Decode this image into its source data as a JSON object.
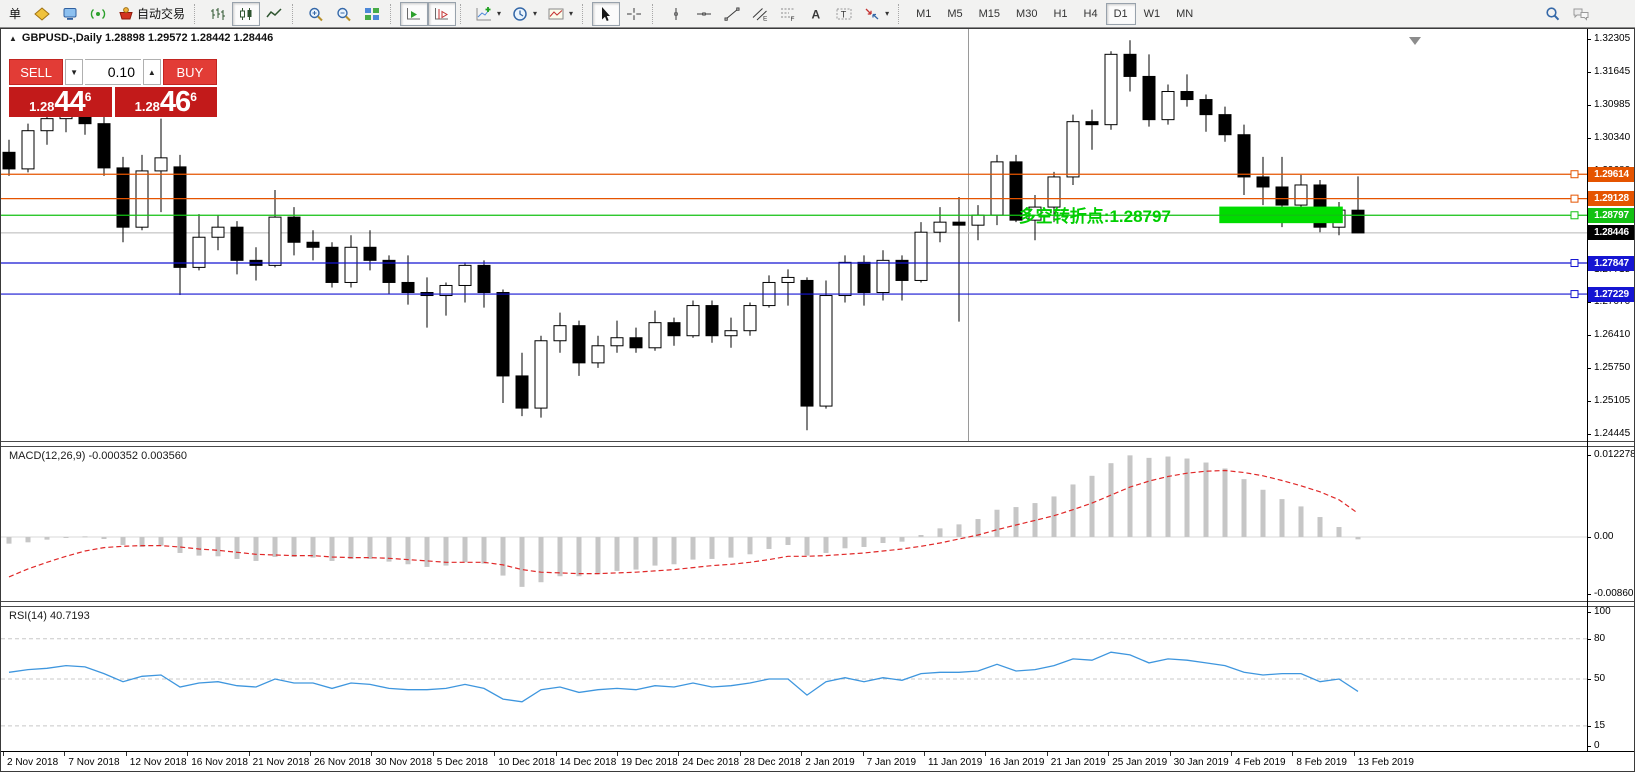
{
  "toolbar": {
    "groups": [
      {
        "items": [
          {
            "name": "new-order-button",
            "label": "单"
          },
          {
            "name": "gold-icon"
          },
          {
            "name": "terminal-icon"
          },
          {
            "name": "signal-icon"
          },
          {
            "name": "autotrading-button",
            "label": "自动交易"
          }
        ]
      },
      {
        "items": [
          {
            "name": "bar-chart-button"
          },
          {
            "name": "candlestick-chart-button",
            "active": true
          },
          {
            "name": "line-chart-button"
          }
        ]
      },
      {
        "items": [
          {
            "name": "zoom-in-button"
          },
          {
            "name": "zoom-out-button"
          },
          {
            "name": "tile-windows-button"
          }
        ]
      },
      {
        "items": [
          {
            "name": "auto-scroll-button",
            "active": true
          },
          {
            "name": "chart-shift-button",
            "active": true
          }
        ]
      },
      {
        "items": [
          {
            "name": "indicators-button",
            "dropdown": true
          },
          {
            "name": "periods-button",
            "dropdown": true
          },
          {
            "name": "templates-button",
            "dropdown": true
          }
        ]
      },
      {
        "items": [
          {
            "name": "cursor-button",
            "active": true
          },
          {
            "name": "crosshair-button"
          }
        ]
      },
      {
        "items": [
          {
            "name": "vertical-line-button"
          },
          {
            "name": "horizontal-line-button"
          },
          {
            "name": "trendline-button"
          },
          {
            "name": "equidistant-channel-button"
          },
          {
            "name": "fibonacci-button"
          },
          {
            "name": "text-button"
          },
          {
            "name": "text-label-button"
          },
          {
            "name": "arrows-button",
            "dropdown": true
          }
        ]
      }
    ],
    "timeframes": {
      "items": [
        "M1",
        "M5",
        "M15",
        "M30",
        "H1",
        "H4",
        "D1",
        "W1",
        "MN"
      ],
      "active": "D1"
    },
    "right_items": [
      {
        "name": "search-button"
      },
      {
        "name": "chat-button"
      }
    ]
  },
  "window_title": {
    "collapse_icon": "▲",
    "text": "GBPUSD-,Daily  1.28898 1.29572 1.28442 1.28446"
  },
  "trade_panel": {
    "sell_label": "SELL",
    "buy_label": "BUY",
    "volume": "0.10",
    "sell_price": {
      "prefix": "1.28",
      "big": "44",
      "sup": "6"
    },
    "buy_price": {
      "prefix": "1.28",
      "big": "46",
      "sup": "6"
    }
  },
  "indicators": {
    "macd_label": "MACD(12,26,9) -0.000352 0.003560",
    "rsi_label": "RSI(14) 40.7193"
  },
  "main_chart": {
    "price_ticks": [
      "1.32305",
      "1.31645",
      "1.30985",
      "1.30340",
      "1.29680",
      "1.29020",
      "1.28375",
      "1.27715",
      "1.27070",
      "1.26410",
      "1.25750",
      "1.25105",
      "1.24445"
    ],
    "levels": [
      {
        "price": 1.29614,
        "label": "1.29614",
        "color": "#E55400"
      },
      {
        "price": 1.29128,
        "label": "1.29128",
        "color": "#E55400"
      },
      {
        "price": 1.28797,
        "label": "1.28797",
        "color": "#12C112"
      },
      {
        "price": 1.27847,
        "label": "1.27847",
        "color": "#1515D2"
      },
      {
        "price": 1.27229,
        "label": "1.27229",
        "color": "#1515D2"
      }
    ],
    "current_price": {
      "price": 1.28446,
      "label": "1.28446",
      "badge_color": "#000000",
      "line_color": "#b6b6b6"
    },
    "rectangle": {
      "bar_start": 63.7,
      "bar_end": 70.2,
      "price_top": 1.2897,
      "price_bottom": 1.2864,
      "color": "#00DC00"
    },
    "annotation": {
      "text": "多空转折点:1.28797",
      "color": "#00CE00",
      "bar": 53.2,
      "price": 1.2878
    },
    "vertical_line": {
      "bar": 50.5,
      "color": "#9a9a9a"
    }
  },
  "macd_axis_ticks": [
    "0.012278",
    "0.00",
    "-0.008605"
  ],
  "rsi_axis_ticks": [
    "100",
    "80",
    "50",
    "15",
    "0"
  ],
  "rsi_levels": [
    80,
    50,
    15
  ],
  "x_axis_labels": [
    "2 Nov 2018",
    "7 Nov 2018",
    "12 Nov 2018",
    "16 Nov 2018",
    "21 Nov 2018",
    "26 Nov 2018",
    "30 Nov 2018",
    "5 Dec 2018",
    "10 Dec 2018",
    "14 Dec 2018",
    "19 Dec 2018",
    "24 Dec 2018",
    "28 Dec 2018",
    "2 Jan 2019",
    "7 Jan 2019",
    "11 Jan 2019",
    "16 Jan 2019",
    "21 Jan 2019",
    "25 Jan 2019",
    "30 Jan 2019",
    "4 Feb 2019",
    "8 Feb 2019",
    "13 Feb 2019"
  ],
  "colors": {
    "level_orange": "#E55400",
    "level_green": "#12C112",
    "level_blue": "#1515D2",
    "panel_red": "#c21a1a",
    "button_red": "#e23c36",
    "macd_bar": "#c6c6c6",
    "macd_signal": "#e02828",
    "rsi_line": "#3e96de"
  },
  "chart_data": [
    {
      "type": "candlestick",
      "symbol": "GBPUSD-",
      "timeframe": "Daily",
      "open": "1.28898",
      "high": "1.29572",
      "low": "1.28442",
      "close": "1.28446",
      "ylim": [
        1.24445,
        1.32305
      ],
      "dates": [
        "2018-11-02",
        "2018-11-05",
        "2018-11-06",
        "2018-11-07",
        "2018-11-08",
        "2018-11-09",
        "2018-11-12",
        "2018-11-13",
        "2018-11-14",
        "2018-11-15",
        "2018-11-16",
        "2018-11-19",
        "2018-11-20",
        "2018-11-21",
        "2018-11-22",
        "2018-11-23",
        "2018-11-26",
        "2018-11-27",
        "2018-11-28",
        "2018-11-29",
        "2018-11-30",
        "2018-12-03",
        "2018-12-04",
        "2018-12-05",
        "2018-12-06",
        "2018-12-07",
        "2018-12-10",
        "2018-12-11",
        "2018-12-12",
        "2018-12-13",
        "2018-12-14",
        "2018-12-17",
        "2018-12-18",
        "2018-12-19",
        "2018-12-20",
        "2018-12-21",
        "2018-12-24",
        "2018-12-26",
        "2018-12-27",
        "2018-12-28",
        "2018-12-31",
        "2019-01-02",
        "2019-01-03",
        "2019-01-04",
        "2019-01-07",
        "2019-01-08",
        "2019-01-09",
        "2019-01-10",
        "2019-01-11",
        "2019-01-14",
        "2019-01-15",
        "2019-01-16",
        "2019-01-17",
        "2019-01-18",
        "2019-01-21",
        "2019-01-22",
        "2019-01-23",
        "2019-01-24",
        "2019-01-25",
        "2019-01-28",
        "2019-01-29",
        "2019-01-30",
        "2019-01-31",
        "2019-02-01",
        "2019-02-04",
        "2019-02-05",
        "2019-02-06",
        "2019-02-07",
        "2019-02-08",
        "2019-02-11",
        "2019-02-12",
        "2019-02-13"
      ],
      "ohlc": [
        [
          1.3005,
          1.303,
          1.2958,
          1.2972
        ],
        [
          1.2972,
          1.3062,
          1.2965,
          1.3048
        ],
        [
          1.3048,
          1.3092,
          1.302,
          1.3072
        ],
        [
          1.3072,
          1.31,
          1.3045,
          1.3088
        ],
        [
          1.3088,
          1.3099,
          1.304,
          1.3062
        ],
        [
          1.3062,
          1.3076,
          1.2958,
          1.2974
        ],
        [
          1.2974,
          1.2996,
          1.2826,
          1.2856
        ],
        [
          1.2856,
          1.3,
          1.285,
          1.2968
        ],
        [
          1.2968,
          1.3072,
          1.2886,
          1.2994
        ],
        [
          1.2976,
          1.3,
          1.2721,
          1.2776
        ],
        [
          1.2776,
          1.2882,
          1.277,
          1.2836
        ],
        [
          1.2836,
          1.288,
          1.281,
          1.2856
        ],
        [
          1.2856,
          1.2868,
          1.2762,
          1.279
        ],
        [
          1.279,
          1.2816,
          1.275,
          1.278
        ],
        [
          1.278,
          1.293,
          1.2776,
          1.2876
        ],
        [
          1.2876,
          1.2896,
          1.28,
          1.2826
        ],
        [
          1.2826,
          1.285,
          1.279,
          1.2816
        ],
        [
          1.2816,
          1.2826,
          1.2736,
          1.2746
        ],
        [
          1.2746,
          1.284,
          1.2736,
          1.2816
        ],
        [
          1.2816,
          1.285,
          1.277,
          1.279
        ],
        [
          1.279,
          1.28,
          1.2722,
          1.2746
        ],
        [
          1.2746,
          1.28,
          1.2702,
          1.2726
        ],
        [
          1.2726,
          1.2756,
          1.2656,
          1.272
        ],
        [
          1.272,
          1.2746,
          1.268,
          1.274
        ],
        [
          1.274,
          1.2786,
          1.2706,
          1.278
        ],
        [
          1.278,
          1.279,
          1.2696,
          1.2726
        ],
        [
          1.2726,
          1.2732,
          1.2506,
          1.256
        ],
        [
          1.256,
          1.2606,
          1.248,
          1.2496
        ],
        [
          1.2496,
          1.264,
          1.2477,
          1.263
        ],
        [
          1.263,
          1.2686,
          1.2606,
          1.266
        ],
        [
          1.266,
          1.267,
          1.256,
          1.2586
        ],
        [
          1.2586,
          1.264,
          1.2576,
          1.262
        ],
        [
          1.262,
          1.267,
          1.2606,
          1.2636
        ],
        [
          1.2636,
          1.2656,
          1.2606,
          1.2616
        ],
        [
          1.2616,
          1.269,
          1.261,
          1.2666
        ],
        [
          1.2666,
          1.2676,
          1.262,
          1.264
        ],
        [
          1.264,
          1.271,
          1.2636,
          1.27
        ],
        [
          1.27,
          1.271,
          1.2626,
          1.264
        ],
        [
          1.264,
          1.2676,
          1.2616,
          1.265
        ],
        [
          1.265,
          1.2706,
          1.264,
          1.27
        ],
        [
          1.27,
          1.276,
          1.2696,
          1.2746
        ],
        [
          1.2746,
          1.2772,
          1.27,
          1.2756
        ],
        [
          1.275,
          1.2756,
          1.2452,
          1.25
        ],
        [
          1.25,
          1.275,
          1.2495,
          1.272
        ],
        [
          1.272,
          1.28,
          1.2706,
          1.2786
        ],
        [
          1.2786,
          1.28,
          1.27,
          1.2726
        ],
        [
          1.2726,
          1.281,
          1.271,
          1.279
        ],
        [
          1.279,
          1.28,
          1.271,
          1.275
        ],
        [
          1.275,
          1.2866,
          1.2746,
          1.2846
        ],
        [
          1.2846,
          1.2896,
          1.2826,
          1.2866
        ],
        [
          1.2866,
          1.2916,
          1.2668,
          1.286
        ],
        [
          1.286,
          1.29,
          1.283,
          1.288
        ],
        [
          1.288,
          1.3,
          1.286,
          1.2986
        ],
        [
          1.2986,
          1.3,
          1.2866,
          1.287
        ],
        [
          1.287,
          1.292,
          1.283,
          1.2896
        ],
        [
          1.2896,
          1.2966,
          1.2866,
          1.2956
        ],
        [
          1.2956,
          1.308,
          1.294,
          1.3066
        ],
        [
          1.3066,
          1.309,
          1.301,
          1.306
        ],
        [
          1.306,
          1.3206,
          1.305,
          1.32
        ],
        [
          1.32,
          1.3228,
          1.3126,
          1.3156
        ],
        [
          1.3156,
          1.32,
          1.3056,
          1.307
        ],
        [
          1.307,
          1.314,
          1.306,
          1.3126
        ],
        [
          1.3126,
          1.316,
          1.3096,
          1.311
        ],
        [
          1.311,
          1.312,
          1.3046,
          1.308
        ],
        [
          1.308,
          1.3096,
          1.3026,
          1.304
        ],
        [
          1.304,
          1.306,
          1.292,
          1.2956
        ],
        [
          1.2956,
          1.2996,
          1.29,
          1.2936
        ],
        [
          1.2936,
          1.2996,
          1.2856,
          1.29
        ],
        [
          1.29,
          1.296,
          1.288,
          1.294
        ],
        [
          1.294,
          1.295,
          1.2846,
          1.2856
        ],
        [
          1.2856,
          1.2906,
          1.284,
          1.289
        ],
        [
          1.28898,
          1.29572,
          1.28442,
          1.28446
        ]
      ]
    },
    {
      "type": "bar",
      "name": "MACD(12,26,9)",
      "current_main": "-0.000352",
      "current_signal": "0.003560",
      "ylim": [
        -0.008605,
        0.012278
      ],
      "values": [
        -0.001,
        -0.0008,
        -0.0004,
        -0.0001,
        0.0001,
        -0.0003,
        -0.0012,
        -0.0015,
        -0.0013,
        -0.0024,
        -0.0028,
        -0.0029,
        -0.0033,
        -0.0036,
        -0.003,
        -0.003,
        -0.0031,
        -0.0036,
        -0.0033,
        -0.0033,
        -0.0037,
        -0.0041,
        -0.0045,
        -0.0043,
        -0.0038,
        -0.004,
        -0.0058,
        -0.0075,
        -0.0068,
        -0.0059,
        -0.0059,
        -0.0056,
        -0.0051,
        -0.0049,
        -0.0043,
        -0.0041,
        -0.0034,
        -0.0033,
        -0.0031,
        -0.0026,
        -0.0018,
        -0.0012,
        -0.0028,
        -0.0024,
        -0.0017,
        -0.0015,
        -0.0009,
        -0.0007,
        0.0003,
        0.0013,
        0.0019,
        0.0027,
        0.0041,
        0.0045,
        0.0051,
        0.0061,
        0.0079,
        0.0092,
        0.0111,
        0.012278,
        0.0119,
        0.0121,
        0.0118,
        0.0112,
        0.0103,
        0.0087,
        0.0071,
        0.0057,
        0.0046,
        0.003,
        0.0015,
        -0.000352
      ],
      "signal": [
        -0.006,
        -0.0048,
        -0.0038,
        -0.0029,
        -0.0021,
        -0.0016,
        -0.0014,
        -0.0013,
        -0.0013,
        -0.0015,
        -0.0018,
        -0.002,
        -0.0023,
        -0.0026,
        -0.0027,
        -0.0028,
        -0.0028,
        -0.003,
        -0.0031,
        -0.0031,
        -0.0032,
        -0.0034,
        -0.0036,
        -0.0038,
        -0.0038,
        -0.0038,
        -0.0042,
        -0.0049,
        -0.0053,
        -0.0054,
        -0.0055,
        -0.0055,
        -0.0054,
        -0.0053,
        -0.0051,
        -0.0049,
        -0.0046,
        -0.0043,
        -0.0041,
        -0.0038,
        -0.0034,
        -0.0029,
        -0.0029,
        -0.0028,
        -0.0026,
        -0.0024,
        -0.0021,
        -0.0018,
        -0.0014,
        -0.0009,
        -0.0003,
        0.0003,
        0.0011,
        0.0018,
        0.0025,
        0.0032,
        0.0041,
        0.0051,
        0.0063,
        0.0075,
        0.0084,
        0.0091,
        0.0096,
        0.0099,
        0.01,
        0.0097,
        0.0092,
        0.0085,
        0.0077,
        0.0068,
        0.0056,
        0.00356
      ]
    },
    {
      "type": "line",
      "name": "RSI(14)",
      "current": "40.7193",
      "levels": [
        80,
        50,
        15
      ],
      "ylim": [
        0,
        100
      ],
      "values": [
        55,
        57,
        58,
        60,
        59,
        54,
        48,
        52,
        53,
        44,
        47,
        48,
        45,
        44,
        50,
        47,
        47,
        43,
        47,
        46,
        43,
        42,
        42,
        43,
        46,
        43,
        35,
        33,
        42,
        44,
        40,
        42,
        43,
        42,
        45,
        44,
        47,
        44,
        45,
        47,
        50,
        50,
        38,
        48,
        51,
        48,
        51,
        49,
        54,
        55,
        55,
        56,
        61,
        56,
        57,
        60,
        65,
        64,
        70,
        68,
        62,
        65,
        64,
        62,
        60,
        55,
        53,
        54,
        54,
        48,
        50,
        40.7193
      ]
    }
  ]
}
